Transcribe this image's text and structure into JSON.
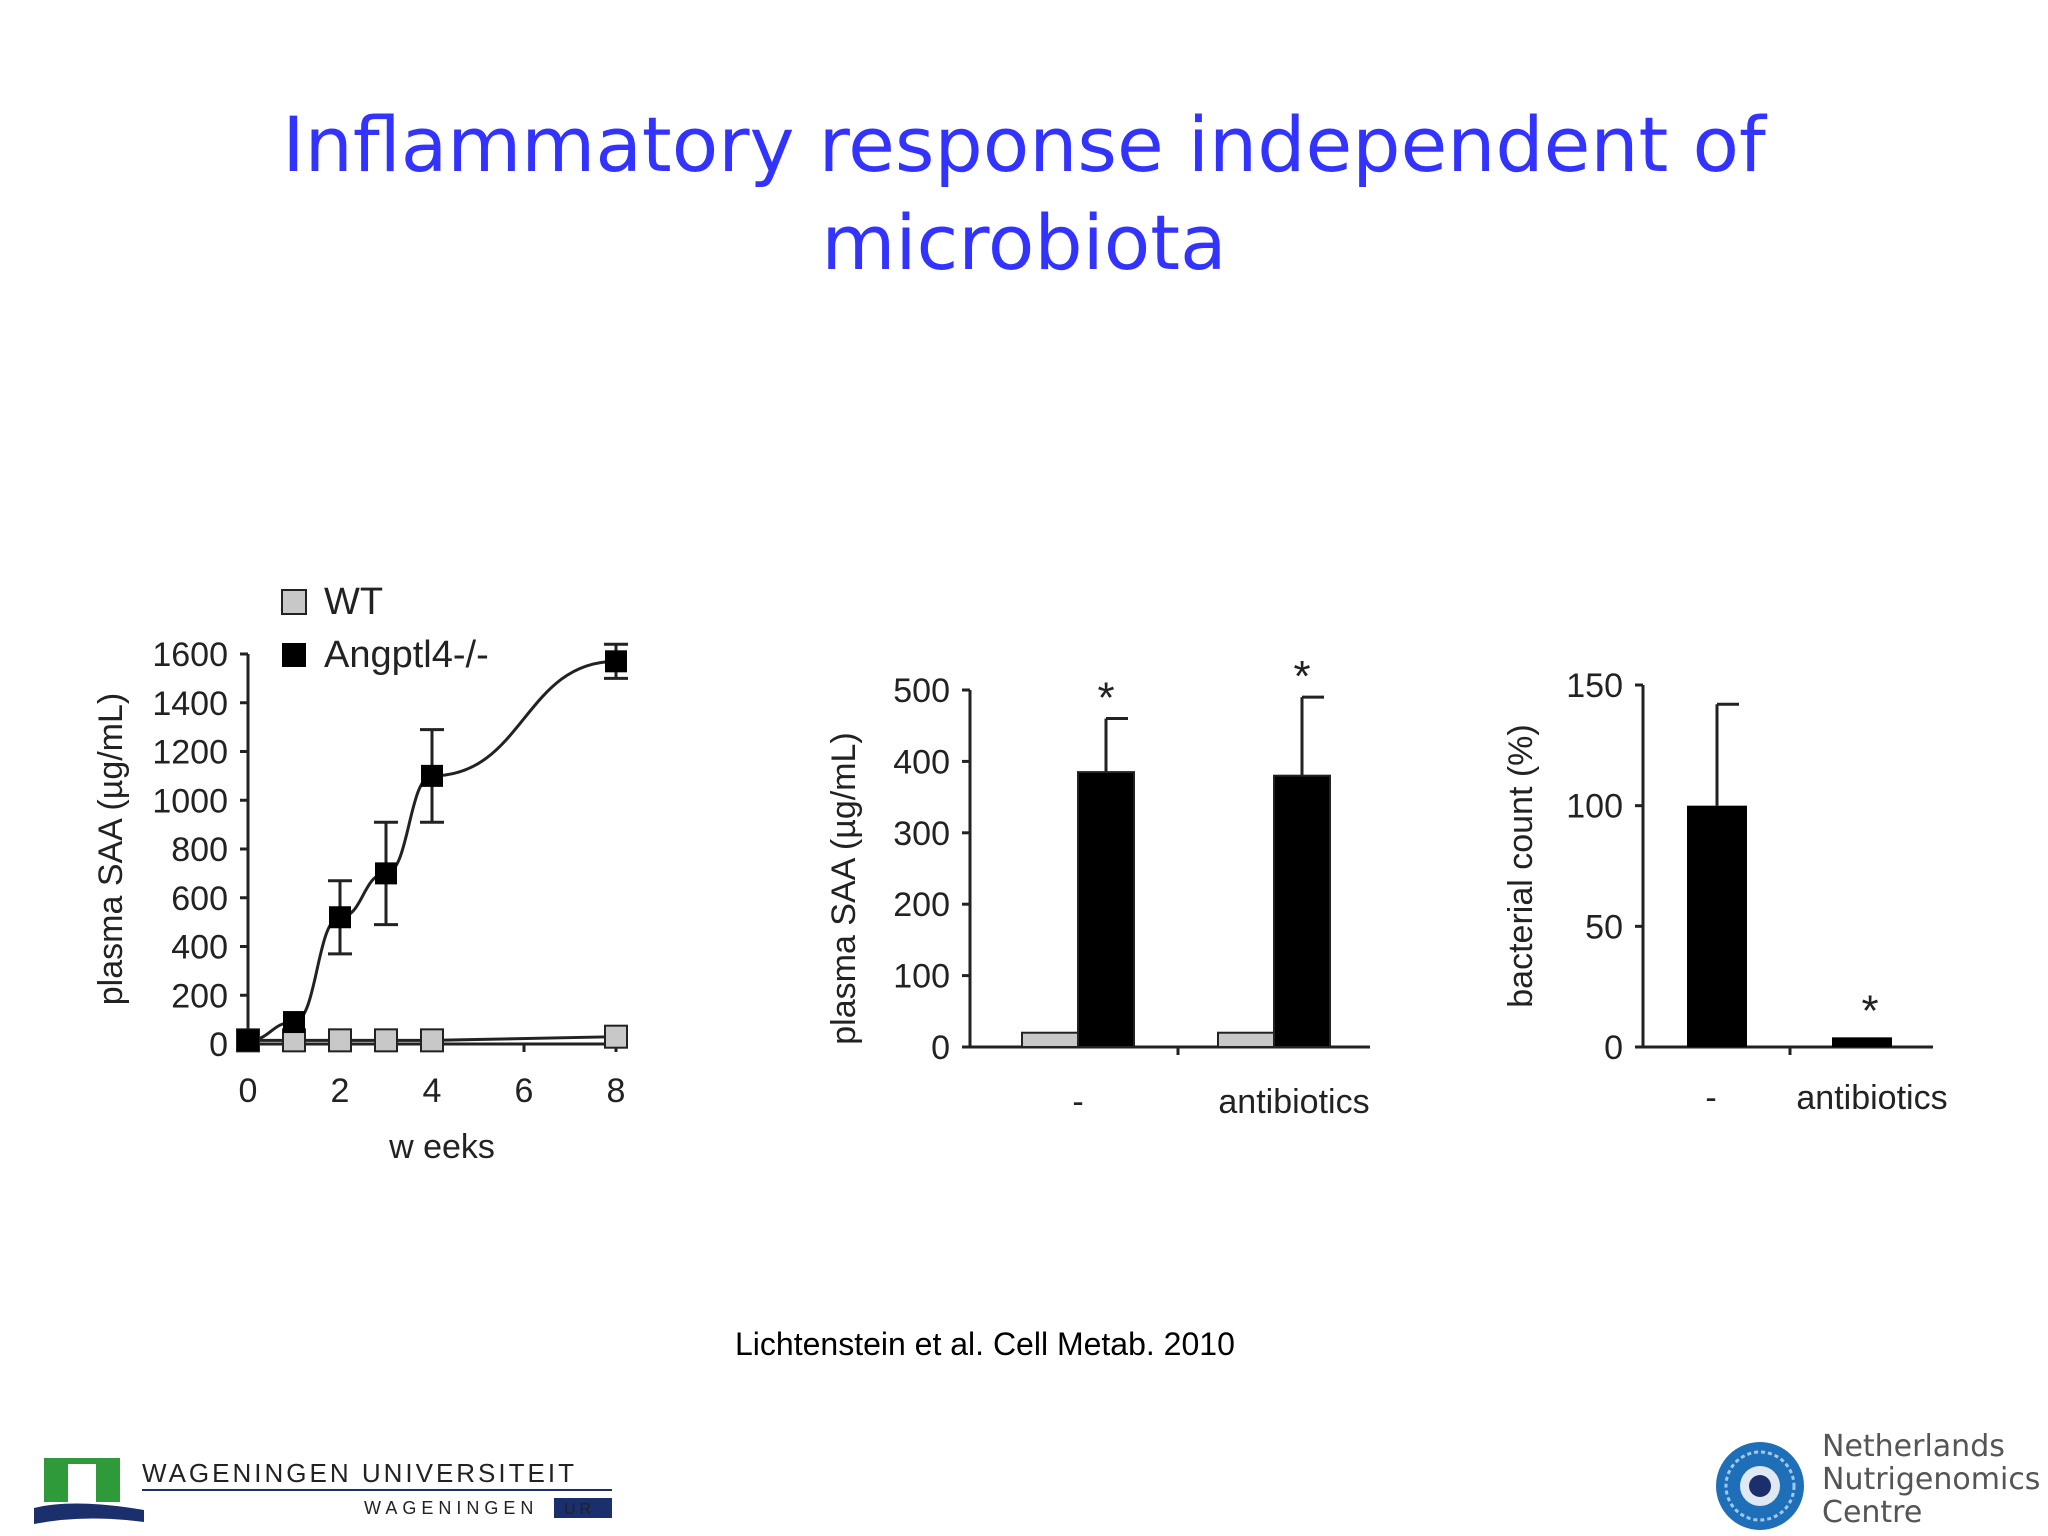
{
  "slide": {
    "title_line1": "Inflammatory response independent of",
    "title_line2": "microbiota",
    "citation": "Lichtenstein et al. Cell Metab. 2010",
    "logos": {
      "left_line1": "WAGENINGEN UNIVERSITEIT",
      "left_line2": "WAGENINGEN",
      "left_badge": "UR",
      "right_line1": "Netherlands",
      "right_line2": "Nutrigenomics",
      "right_line3": "Centre"
    }
  },
  "colors": {
    "title": "#3333ff",
    "wt": "#c8c8c8",
    "ko": "#000000",
    "logo_green": "#2e9a3a",
    "logo_navy": "#1a2f6b",
    "logo_blue": "#1f6fb8"
  },
  "chart_data": [
    {
      "type": "line",
      "ylabel": "plasma SAA (µg/mL)",
      "xlabel": "w eeks",
      "xlim": [
        0,
        8
      ],
      "ylim": [
        0,
        1600
      ],
      "xticks": [
        "0",
        "2",
        "4",
        "6",
        "8"
      ],
      "yticks": [
        "0",
        "200",
        "400",
        "600",
        "800",
        "1000",
        "1200",
        "1400",
        "1600"
      ],
      "legend": "top-left",
      "series": [
        {
          "name": "WT",
          "x": [
            0,
            1,
            2,
            3,
            4,
            8
          ],
          "y": [
            15,
            15,
            15,
            15,
            15,
            30
          ],
          "err": [
            0,
            0,
            0,
            0,
            0,
            0
          ]
        },
        {
          "name": "Angptl4-/-",
          "x": [
            0,
            1,
            2,
            3,
            4,
            8
          ],
          "y": [
            15,
            90,
            520,
            700,
            1100,
            1570
          ],
          "err": [
            0,
            0,
            150,
            210,
            190,
            70
          ]
        }
      ]
    },
    {
      "type": "bar",
      "ylabel": "plasma SAA (µg/mL)",
      "categories": [
        "-",
        "antibiotics"
      ],
      "ylim": [
        0,
        500
      ],
      "yticks": [
        "0",
        "100",
        "200",
        "300",
        "400",
        "500"
      ],
      "series": [
        {
          "name": "WT",
          "values": [
            20,
            20
          ],
          "err": [
            0,
            0
          ]
        },
        {
          "name": "Angptl4-/-",
          "values": [
            385,
            380
          ],
          "err": [
            75,
            110
          ]
        }
      ],
      "annotations": [
        "*",
        "*"
      ]
    },
    {
      "type": "bar",
      "ylabel": "bacterial count (%)",
      "categories": [
        "-",
        "antibiotics"
      ],
      "ylim": [
        0,
        150
      ],
      "yticks": [
        "0",
        "50",
        "100",
        "150"
      ],
      "values": [
        100,
        4
      ],
      "err": [
        42,
        0
      ],
      "annotations": [
        "",
        "*"
      ]
    }
  ]
}
